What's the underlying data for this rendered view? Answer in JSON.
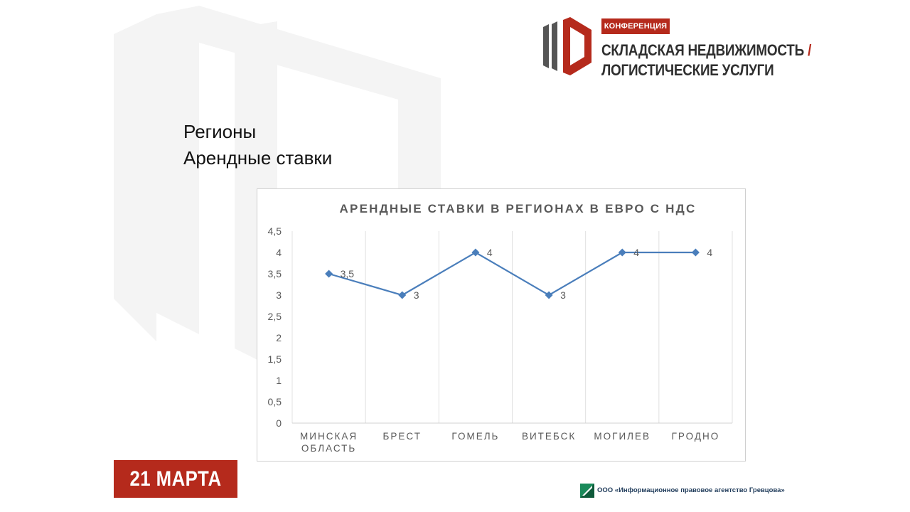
{
  "header": {
    "badge": "КОНФЕРЕНЦИЯ",
    "title_line1": "СКЛАДСКАЯ НЕДВИЖИМОСТЬ",
    "title_slash": "/",
    "title_line2": "ЛОГИСТИЧЕСКИЕ УСЛУГИ"
  },
  "slide": {
    "line1": "Регионы",
    "line2": "Арендные ставки"
  },
  "footer": {
    "date": "21 МАРТА",
    "agency": "ООО «Информационное правовое агентство Гревцова»"
  },
  "colors": {
    "accent": "#b52a1c",
    "series": "#4a7ebb",
    "logo_gray": "#555555"
  },
  "chart_data": {
    "type": "line",
    "title": "АРЕНДНЫЕ СТАВКИ В РЕГИОНАХ В ЕВРО С НДС",
    "categories": [
      [
        "МИНСКАЯ",
        "ОБЛАСТЬ"
      ],
      [
        "БРЕСТ"
      ],
      [
        "ГОМЕЛЬ"
      ],
      [
        "ВИТЕБСК"
      ],
      [
        "МОГИЛЕВ"
      ],
      [
        "ГРОДНО"
      ]
    ],
    "series": [
      {
        "values": [
          3.5,
          3,
          4,
          3,
          4,
          4
        ],
        "labels": [
          "3,5",
          "3",
          "4",
          "3",
          "4",
          "4"
        ]
      }
    ],
    "ylim": [
      0,
      4.5
    ],
    "yticks": [
      0,
      0.5,
      1,
      1.5,
      2,
      2.5,
      3,
      3.5,
      4,
      4.5
    ],
    "ytick_labels": [
      "0",
      "0,5",
      "1",
      "1,5",
      "2",
      "2,5",
      "3",
      "3,5",
      "4",
      "4,5"
    ],
    "xlabel": "",
    "ylabel": "",
    "grid": "vertical",
    "legend": "none",
    "marker": "diamond"
  }
}
